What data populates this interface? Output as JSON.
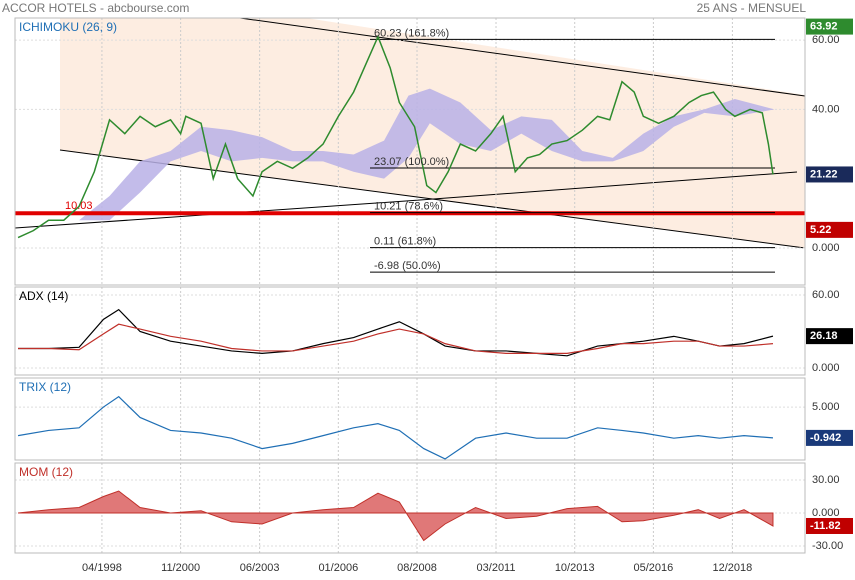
{
  "header": {
    "title": "ACCOR HOTELS - abcbourse.com",
    "period": "25 ANS - MENSUEL"
  },
  "chart_data": [
    {
      "type": "line",
      "title": "ICHIMOKU (26, 9)",
      "title_color": "#1f6fb5",
      "xlim": [
        1995.4,
        2021.3
      ],
      "xticks": [
        {
          "value": 1998.25,
          "label": "04/1998"
        },
        {
          "value": 2000.83,
          "label": "11/2000"
        },
        {
          "value": 2003.42,
          "label": "06/2003"
        },
        {
          "value": 2006.0,
          "label": "01/2006"
        },
        {
          "value": 2008.58,
          "label": "08/2008"
        },
        {
          "value": 2011.17,
          "label": "03/2011"
        },
        {
          "value": 2013.75,
          "label": "10/2013"
        },
        {
          "value": 2016.33,
          "label": "05/2016"
        },
        {
          "value": 2018.92,
          "label": "12/2018"
        }
      ],
      "ylim": [
        -10.7,
        66.4
      ],
      "yticks": [
        {
          "value": 0,
          "label": "0.000"
        },
        {
          "value": 40,
          "label": "40.00"
        },
        {
          "value": 60,
          "label": "60.00"
        }
      ],
      "series": [
        {
          "color": "#2e8b2e",
          "x": [
            1995.5,
            1996,
            1996.5,
            1997,
            1997.5,
            1998,
            1998.5,
            1999,
            1999.5,
            2000,
            2000.5,
            2000.83,
            2001,
            2001.5,
            2001.9,
            2002.3,
            2002.7,
            2003.2,
            2003.5,
            2004,
            2004.5,
            2005,
            2005.5,
            2006,
            2006.5,
            2007,
            2007.3,
            2007.7,
            2008,
            2008.5,
            2008.9,
            2009.2,
            2009.6,
            2010,
            2010.5,
            2011,
            2011.4,
            2011.8,
            2012.2,
            2012.6,
            2013,
            2013.5,
            2014,
            2014.5,
            2014.9,
            2015.3,
            2015.7,
            2016,
            2016.5,
            2017,
            2017.5,
            2017.9,
            2018.3,
            2018.7,
            2019,
            2019.5,
            2019.9,
            2020.1,
            2020.25
          ],
          "values": [
            3,
            5,
            8,
            8,
            12,
            22,
            37,
            33,
            38,
            35,
            37,
            33,
            38,
            36,
            20,
            30,
            20,
            15,
            22,
            25,
            23,
            26,
            30,
            38,
            45,
            55,
            61,
            52,
            42,
            35,
            18,
            16,
            22,
            30,
            28,
            33,
            38,
            22,
            26,
            27,
            30,
            31,
            34,
            38,
            37,
            48,
            45,
            38,
            36,
            38,
            42,
            44,
            45,
            40,
            38,
            40,
            39,
            30,
            21.22
          ]
        }
      ],
      "cloud": {
        "color": "#b9b0e6",
        "x": [
          1997.5,
          1998.5,
          1999.5,
          2000.5,
          2001.5,
          2002.5,
          2003.5,
          2004.5,
          2005.5,
          2006.5,
          2007.5,
          2008.3,
          2009,
          2010,
          2011,
          2012,
          2013,
          2014,
          2015,
          2016,
          2017,
          2018,
          2019,
          2020.3
        ],
        "upper": [
          8,
          15,
          25,
          28,
          35,
          34,
          32,
          28,
          28,
          27,
          31,
          44,
          46,
          42,
          34,
          38,
          37,
          28,
          26,
          33,
          38,
          40,
          43,
          40
        ],
        "lower": [
          8,
          8,
          16,
          25,
          28,
          25,
          26,
          25,
          25,
          22,
          20,
          26,
          36,
          30,
          28,
          33,
          28,
          25,
          25,
          28,
          35,
          39,
          38,
          40
        ]
      },
      "fib_levels": [
        {
          "value": 60.23,
          "label": "60.23  (161.8%)"
        },
        {
          "value": 23.07,
          "label": "23.07  (100.0%)"
        },
        {
          "value": 10.21,
          "label": "10.21  (78.6%)"
        },
        {
          "value": 0.11,
          "label": "0.11  (61.8%)"
        },
        {
          "value": -6.98,
          "label": "-6.98  (50.0%)"
        }
      ],
      "support": {
        "value": 10.03,
        "color": "#e00000"
      },
      "badges": [
        {
          "value": 63.92,
          "color": "#2e8b2e"
        },
        {
          "value": 21.22,
          "color": "#1a2a5a"
        },
        {
          "value": 5.22,
          "color": "#c00000"
        }
      ]
    },
    {
      "type": "line",
      "title": "ADX (14)",
      "title_color": "#000000",
      "x": [
        1995.5,
        1996.5,
        1997.5,
        1998.3,
        1998.8,
        1999.5,
        2000.5,
        2001.5,
        2002.5,
        2003.5,
        2004.5,
        2005.5,
        2006.5,
        2007.3,
        2008,
        2008.8,
        2009.5,
        2010.5,
        2011.5,
        2012.5,
        2013.5,
        2014.5,
        2015.3,
        2016,
        2017,
        2017.8,
        2018.5,
        2019.3,
        2020.25
      ],
      "ylim": [
        -5.8,
        66.6
      ],
      "yticks": [
        {
          "value": 0,
          "label": "0.000"
        },
        {
          "value": 60,
          "label": "60.00"
        }
      ],
      "series": [
        {
          "color": "#000000",
          "values": [
            16,
            16,
            17,
            40,
            48,
            30,
            22,
            18,
            14,
            12,
            14,
            20,
            25,
            32,
            38,
            28,
            18,
            14,
            14,
            12,
            10,
            18,
            20,
            22,
            26,
            22,
            18,
            20,
            26.18
          ]
        },
        {
          "color": "#c0302a",
          "values": [
            16,
            16,
            15,
            28,
            36,
            32,
            26,
            22,
            16,
            14,
            14,
            18,
            22,
            28,
            32,
            28,
            20,
            14,
            12,
            12,
            12,
            16,
            20,
            20,
            22,
            22,
            18,
            18,
            20
          ]
        }
      ],
      "badges": [
        {
          "value": 26.18,
          "color": "#000000"
        }
      ]
    },
    {
      "type": "line",
      "title": "TRIX (12)",
      "title_color": "#1f6fb5",
      "x": [
        1995.5,
        1996.5,
        1997.5,
        1998.3,
        1998.8,
        1999.5,
        2000.5,
        2001.5,
        2002.5,
        2003.5,
        2004.5,
        2005.5,
        2006.5,
        2007.3,
        2008,
        2008.8,
        2009.5,
        2010.5,
        2011.5,
        2012.5,
        2013.5,
        2014.5,
        2015.3,
        2016,
        2017,
        2017.8,
        2018.5,
        2019.3,
        2020.25
      ],
      "ylim": [
        -5.2,
        10.6
      ],
      "yticks": [
        {
          "value": 5,
          "label": "5.000"
        }
      ],
      "series": [
        {
          "color": "#1f6fb5",
          "values": [
            -0.5,
            0.5,
            1,
            5,
            7,
            3,
            0.5,
            0,
            -1,
            -3,
            -2,
            -0.5,
            1,
            1.8,
            0.5,
            -3,
            -5,
            -1,
            0,
            -1,
            -1,
            1,
            0.5,
            0,
            -1,
            -0.5,
            -1,
            -0.5,
            -0.942
          ]
        }
      ],
      "badges": [
        {
          "value": -0.942,
          "color": "#1a3a7a"
        }
      ]
    },
    {
      "type": "area",
      "title": "MOM (12)",
      "title_color": "#c0302a",
      "x": [
        1995.5,
        1996.5,
        1997.5,
        1998.3,
        1998.8,
        1999.5,
        2000.5,
        2001.5,
        2002.5,
        2003.5,
        2004.5,
        2005.5,
        2006.5,
        2007.3,
        2008,
        2008.8,
        2009.5,
        2010.5,
        2011.5,
        2012.5,
        2013.5,
        2014.5,
        2015.3,
        2016,
        2017,
        2017.8,
        2018.5,
        2019.3,
        2020.25
      ],
      "ylim": [
        -36.4,
        45.5
      ],
      "yticks": [
        {
          "value": -30,
          "label": "-30.00"
        },
        {
          "value": 0,
          "label": "0.000"
        },
        {
          "value": 30,
          "label": "30.00"
        }
      ],
      "series": [
        {
          "color": "#c0302a",
          "values": [
            0,
            3,
            5,
            15,
            20,
            5,
            0,
            2,
            -8,
            -10,
            0,
            3,
            5,
            18,
            10,
            -25,
            -10,
            5,
            -5,
            -3,
            4,
            6,
            -8,
            -7,
            -2,
            3,
            -5,
            3,
            -11.82
          ]
        }
      ],
      "badges": [
        {
          "value": -11.82,
          "color": "#c00000"
        }
      ]
    }
  ]
}
